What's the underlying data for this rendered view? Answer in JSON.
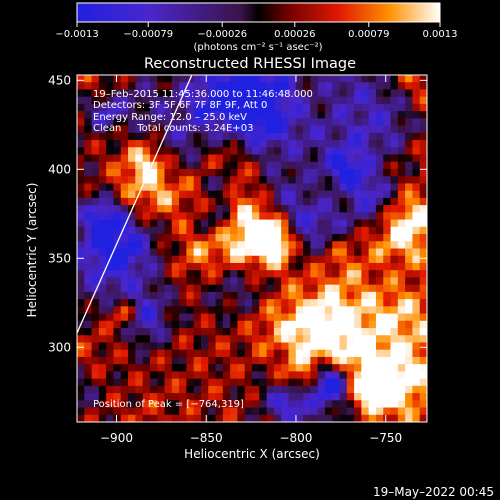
{
  "chart_data": {
    "type": "heatmap",
    "title": "Reconstructed RHESSI Image",
    "xlabel": "Heliocentric X (arcsec)",
    "ylabel": "Heliocentric Y (arcsec)",
    "xlim": [
      -922,
      -727
    ],
    "ylim": [
      258,
      453
    ],
    "x_ticks": [
      -900,
      -850,
      -800,
      -750
    ],
    "x_tick_labels": [
      "−900",
      "−850",
      "−800",
      "−750"
    ],
    "y_ticks": [
      300,
      350,
      400,
      450
    ],
    "y_tick_labels": [
      "300",
      "350",
      "400",
      "450"
    ],
    "colorbar": {
      "range": [
        -0.0013,
        0.0013
      ],
      "ticks": [
        -0.0013,
        -0.00079,
        -0.00026,
        0.00026,
        0.00079,
        0.0013
      ],
      "tick_labels": [
        "−0.0013",
        "−0.00079",
        "−0.00026",
        "0.00026",
        "0.00079",
        "0.0013"
      ],
      "unit_label": "(photons cm⁻² s⁻¹ asec⁻²)"
    },
    "annotations": {
      "time": "19–Feb–2015 11:45:36.000 to 11:46:48.000",
      "detectors": "Detectors: 3F 5F 6F 7F 8F 9F, Att 0",
      "energy": "Energy Range: 12.0 – 25.0 keV",
      "method": "Clean     Total counts: 3.24E+03",
      "peak": "Position of Peak = [−764,319]"
    },
    "peak": {
      "x": -764,
      "y": 319
    },
    "limb_line": {
      "points": [
        [
          -922,
          308
        ],
        [
          -858,
          453
        ]
      ]
    },
    "grid": false,
    "legend": "none",
    "colors": {
      "background": "#000000",
      "text": "#ffffff"
    }
  },
  "footer": {
    "timestamp": "19–May–2022 00:45"
  }
}
